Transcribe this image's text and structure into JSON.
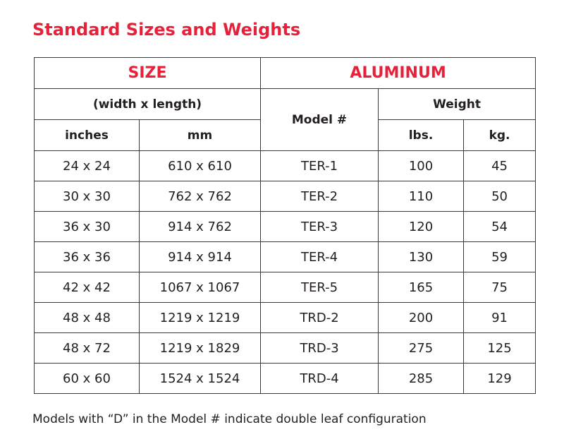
{
  "title": "Standard Sizes and Weights",
  "table": {
    "header": {
      "size": "SIZE",
      "aluminum": "ALUMINUM",
      "dimensions": "(width x length)",
      "model": "Model #",
      "weight": "Weight",
      "inches": "inches",
      "mm": "mm",
      "lbs": "lbs.",
      "kg": "kg."
    },
    "rows": [
      {
        "inches": "24 x 24",
        "mm": "610 x 610",
        "model": "TER-1",
        "lbs": "100",
        "kg": "45"
      },
      {
        "inches": "30 x 30",
        "mm": "762 x 762",
        "model": "TER-2",
        "lbs": "110",
        "kg": "50"
      },
      {
        "inches": "36 x 30",
        "mm": "914 x 762",
        "model": "TER-3",
        "lbs": "120",
        "kg": "54"
      },
      {
        "inches": "36 x 36",
        "mm": "914 x 914",
        "model": "TER-4",
        "lbs": "130",
        "kg": "59"
      },
      {
        "inches": "42 x 42",
        "mm": "1067 x 1067",
        "model": "TER-5",
        "lbs": "165",
        "kg": "75"
      },
      {
        "inches": "48 x 48",
        "mm": "1219 x 1219",
        "model": "TRD-2",
        "lbs": "200",
        "kg": "91"
      },
      {
        "inches": "48 x 72",
        "mm": "1219 x 1829",
        "model": "TRD-3",
        "lbs": "275",
        "kg": "125"
      },
      {
        "inches": "60 x 60",
        "mm": "1524 x 1524",
        "model": "TRD-4",
        "lbs": "285",
        "kg": "129"
      }
    ]
  },
  "footnote": "Models with “D” in the Model # indicate double leaf configuration",
  "colors": {
    "accent": "#e8213a",
    "text": "#231f20",
    "border": "#3a3a3a"
  }
}
